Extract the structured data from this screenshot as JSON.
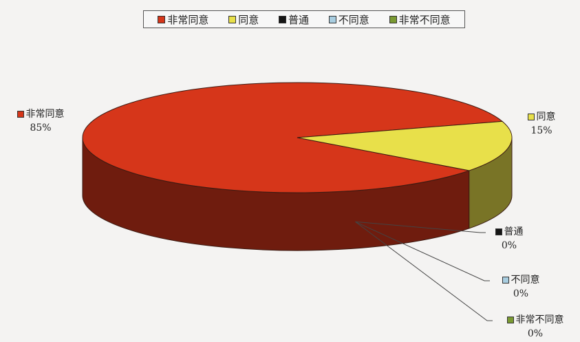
{
  "chart_data": {
    "type": "pie",
    "categories": [
      "非常同意",
      "同意",
      "普通",
      "不同意",
      "非常不同意"
    ],
    "values": [
      85,
      15,
      0,
      0,
      0
    ],
    "value_labels": [
      "85%",
      "15%",
      "0%",
      "0%",
      "0%"
    ],
    "colors": [
      "#d6361a",
      "#e8e04a",
      "#151515",
      "#a8cde0",
      "#7a9a32"
    ],
    "legend_placement": "top"
  }
}
